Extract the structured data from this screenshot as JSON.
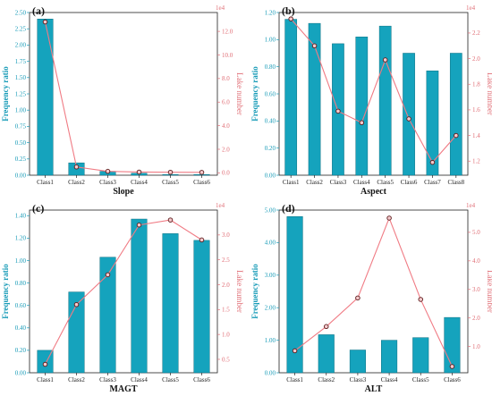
{
  "colors": {
    "bar": "#15a3bd",
    "bar_edge": "#0b6f82",
    "line": "#f07b84",
    "marker_edge": "#5a1a1a",
    "marker_fill": "#f5c9cc",
    "left_axis": "#1a9cb8",
    "right_axis": "#e06e76"
  },
  "chart_data": [
    {
      "type": "bar",
      "panel_label": "(a)",
      "categories": [
        "Class1",
        "Class2",
        "Class3",
        "Class4",
        "Class5",
        "Class6"
      ],
      "series": [
        {
          "name": "Frequency ratio",
          "type": "bar",
          "axis": "left",
          "values": [
            2.4,
            0.19,
            0.06,
            0.03,
            0.01,
            0.01
          ]
        },
        {
          "name": "Lake number",
          "type": "line",
          "axis": "right",
          "values": [
            128000,
            5000,
            1300,
            700,
            500,
            400
          ]
        }
      ],
      "xlabel": "Slope",
      "ylabel": "Frequency ratio",
      "y2label": "Lake number",
      "y2_exponent": "1e4",
      "ylim": [
        0,
        2.5
      ],
      "yticks": [
        "0.00",
        "0.25",
        "0.50",
        "0.75",
        "1.00",
        "1.25",
        "1.50",
        "1.75",
        "2.00",
        "2.25",
        "2.50"
      ],
      "y2lim": [
        -2000,
        136000
      ],
      "y2ticks": [
        "0.0",
        "2.0",
        "4.0",
        "6.0",
        "8.0",
        "10.0",
        "12.0"
      ],
      "grid": false
    },
    {
      "type": "bar",
      "panel_label": "(b)",
      "categories": [
        "Class1",
        "Class2",
        "Class3",
        "Class4",
        "Class5",
        "Class6",
        "Class7",
        "Class8"
      ],
      "series": [
        {
          "name": "Frequency ratio",
          "type": "bar",
          "axis": "left",
          "values": [
            1.15,
            1.12,
            0.97,
            1.02,
            1.1,
            0.9,
            0.77,
            0.9
          ]
        },
        {
          "name": "Lake number",
          "type": "line",
          "axis": "right",
          "values": [
            23100,
            21000,
            15900,
            15000,
            19900,
            15300,
            11900,
            14000
          ]
        }
      ],
      "xlabel": "Aspect",
      "ylabel": "Frequency ratio",
      "y2label": "Lake number",
      "y2_exponent": "1e4",
      "ylim": [
        0,
        1.2
      ],
      "yticks": [
        "0.00",
        "0.20",
        "0.40",
        "0.60",
        "0.80",
        "1.00",
        "1.20"
      ],
      "y2lim": [
        10900,
        23600
      ],
      "y2ticks": [
        "1.2",
        "1.4",
        "1.6",
        "1.8",
        "2.0",
        "2.2"
      ],
      "grid": false
    },
    {
      "type": "bar",
      "panel_label": "(c)",
      "categories": [
        "Class1",
        "Class2",
        "Class3",
        "Class4",
        "Class5",
        "Class6"
      ],
      "series": [
        {
          "name": "Frequency ratio",
          "type": "bar",
          "axis": "left",
          "values": [
            0.2,
            0.72,
            1.03,
            1.37,
            1.24,
            1.18
          ]
        },
        {
          "name": "Lake number",
          "type": "line",
          "axis": "right",
          "values": [
            4000,
            16000,
            22000,
            32000,
            33000,
            29000
          ]
        }
      ],
      "xlabel": "MAGT",
      "ylabel": "Frequency ratio",
      "y2label": "Lake number",
      "y2_exponent": "1e4",
      "ylim": [
        0,
        1.45
      ],
      "yticks": [
        "0.00",
        "0.20",
        "0.40",
        "0.60",
        "0.80",
        "1.00",
        "1.20",
        "1.40"
      ],
      "y2lim": [
        2300,
        35000
      ],
      "y2ticks": [
        "0.5",
        "1.0",
        "1.5",
        "2.0",
        "2.5",
        "3.0"
      ],
      "grid": false
    },
    {
      "type": "bar",
      "panel_label": "(d)",
      "categories": [
        "Class1",
        "Class2",
        "Class3",
        "Class4",
        "Class5",
        "Class6"
      ],
      "series": [
        {
          "name": "Frequency ratio",
          "type": "bar",
          "axis": "left",
          "values": [
            4.8,
            1.17,
            0.7,
            1.0,
            1.08,
            1.7
          ]
        },
        {
          "name": "Lake number",
          "type": "line",
          "axis": "right",
          "values": [
            8500,
            17000,
            27000,
            55000,
            26500,
            3000
          ]
        }
      ],
      "xlabel": "ALT",
      "ylabel": "Frequency ratio",
      "y2label": "Lake number",
      "y2_exponent": "1e4",
      "ylim": [
        0,
        5.0
      ],
      "yticks": [
        "0.00",
        "1.00",
        "2.00",
        "3.00",
        "4.00",
        "5.00"
      ],
      "y2lim": [
        800,
        57800
      ],
      "y2ticks": [
        "1.0",
        "2.0",
        "3.0",
        "4.0",
        "5.0"
      ],
      "grid": false
    }
  ]
}
